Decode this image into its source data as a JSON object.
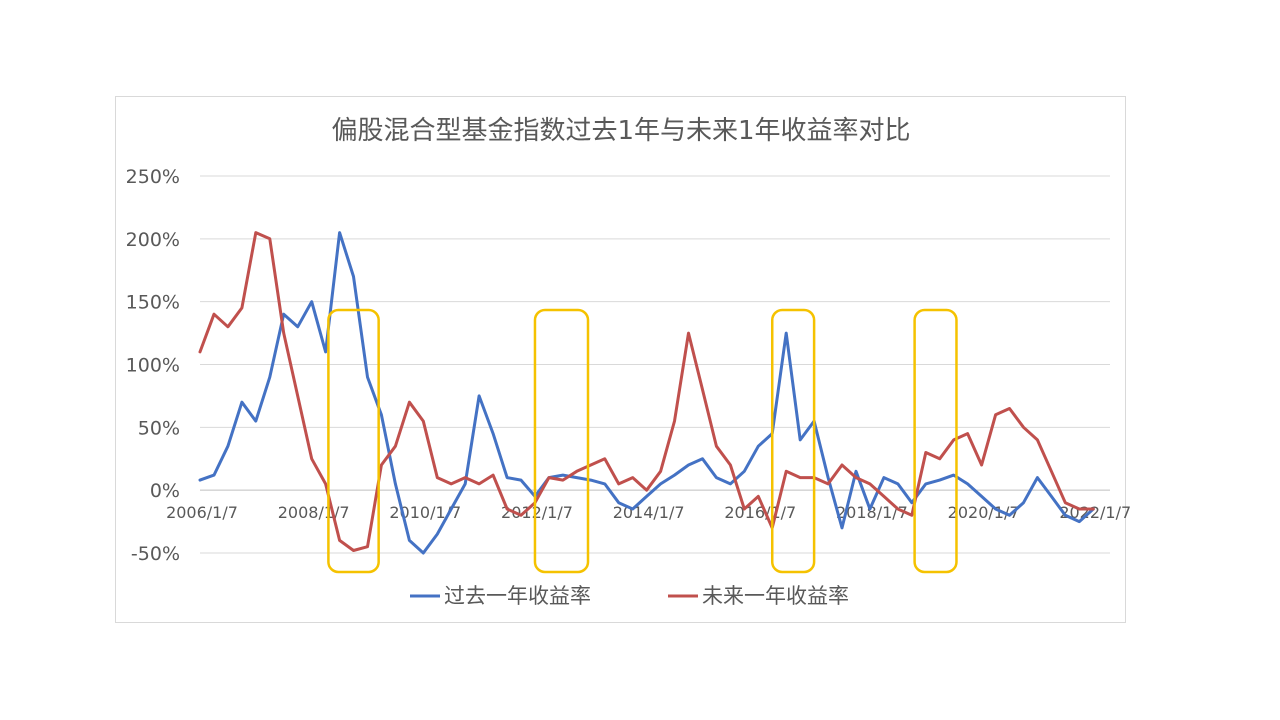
{
  "chart_data": {
    "type": "line",
    "title": "偏股混合型基金指数过去1年与未来1年收益率对比",
    "xlabel": "",
    "ylabel": "",
    "x_tick_labels": [
      "2006/1/7",
      "2008/1/7",
      "2010/1/7",
      "2012/1/7",
      "2014/1/7",
      "2016/1/7",
      "2018/1/7",
      "2020/1/7",
      "2022/1/7"
    ],
    "y_tick_labels": [
      "250%",
      "200%",
      "150%",
      "100%",
      "50%",
      "0%",
      "-50%"
    ],
    "ylim": [
      -50,
      250
    ],
    "grid": "horizontal",
    "legend_position": "bottom",
    "x": [
      2006.0,
      2006.25,
      2006.5,
      2006.75,
      2007.0,
      2007.25,
      2007.5,
      2007.75,
      2008.0,
      2008.25,
      2008.5,
      2008.75,
      2009.0,
      2009.25,
      2009.5,
      2009.75,
      2010.0,
      2010.25,
      2010.5,
      2010.75,
      2011.0,
      2011.25,
      2011.5,
      2011.75,
      2012.0,
      2012.25,
      2012.5,
      2012.75,
      2013.0,
      2013.25,
      2013.5,
      2013.75,
      2014.0,
      2014.25,
      2014.5,
      2014.75,
      2015.0,
      2015.25,
      2015.5,
      2015.75,
      2016.0,
      2016.25,
      2016.5,
      2016.75,
      2017.0,
      2017.25,
      2017.5,
      2017.75,
      2018.0,
      2018.25,
      2018.5,
      2018.75,
      2019.0,
      2019.25,
      2019.5,
      2019.75,
      2020.0,
      2020.25,
      2020.5,
      2020.75,
      2021.0,
      2021.25,
      2021.5,
      2021.75,
      2022.0
    ],
    "series": [
      {
        "name": "过去一年收益率",
        "color": "#4472c4",
        "values": [
          8,
          12,
          35,
          70,
          55,
          90,
          140,
          130,
          150,
          110,
          205,
          170,
          90,
          60,
          5,
          -40,
          -50,
          -35,
          -15,
          5,
          75,
          45,
          10,
          8,
          -5,
          10,
          12,
          10,
          8,
          5,
          -10,
          -15,
          -5,
          5,
          12,
          20,
          25,
          10,
          5,
          15,
          35,
          45,
          125,
          40,
          55,
          10,
          -30,
          15,
          -15,
          10,
          5,
          -10,
          5,
          8,
          12,
          5,
          -5,
          -15,
          -20,
          -10,
          10,
          -5,
          -20,
          -25,
          -15
        ]
      },
      {
        "name": "未来一年收益率",
        "color": "#c0504d",
        "values": [
          110,
          140,
          130,
          145,
          205,
          200,
          125,
          75,
          25,
          5,
          -40,
          -48,
          -45,
          20,
          35,
          70,
          55,
          10,
          5,
          10,
          5,
          12,
          -15,
          -20,
          -10,
          10,
          8,
          15,
          20,
          25,
          5,
          10,
          0,
          15,
          55,
          125,
          80,
          35,
          20,
          -15,
          -5,
          -30,
          15,
          10,
          10,
          5,
          20,
          10,
          5,
          -5,
          -15,
          -20,
          30,
          25,
          40,
          45,
          20,
          60,
          65,
          50,
          40,
          15,
          -10,
          -15,
          -15
        ]
      }
    ],
    "annotations": "four yellow rounded rectangles highlighting regions around 2008.3–2009.2, 2012.0–2012.9, 2016.2–2016.9, 2018.8–2019.5"
  },
  "highlight_color": "#f5c200",
  "grid_color": "#d9d9d9",
  "axis_color": "#bfbfbf"
}
